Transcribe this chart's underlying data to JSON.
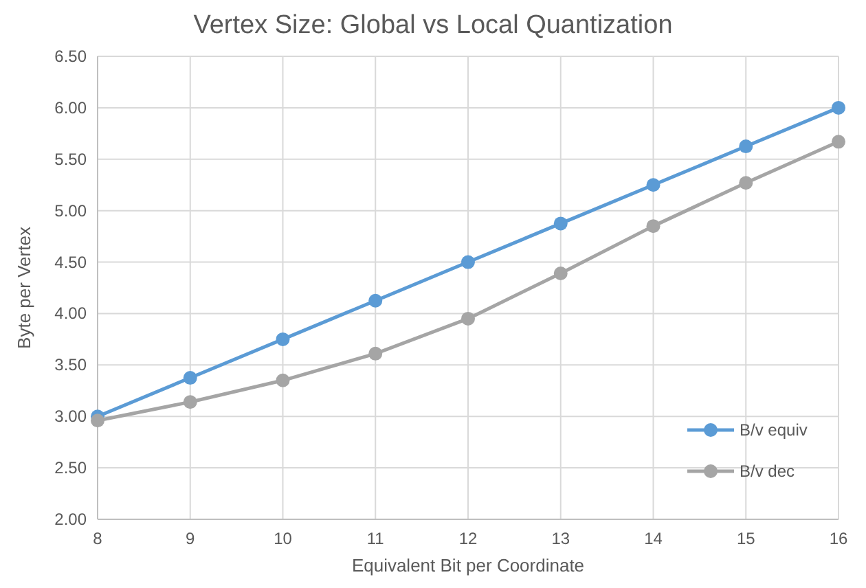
{
  "chart_data": {
    "type": "line",
    "title": "Vertex Size: Global vs Local Quantization",
    "xlabel": "Equivalent Bit per Coordinate",
    "ylabel": "Byte per Vertex",
    "x": [
      8,
      9,
      10,
      11,
      12,
      13,
      14,
      15,
      16
    ],
    "series": [
      {
        "name": "B/v equiv",
        "color": "#5b9bd5",
        "values": [
          3.0,
          3.375,
          3.75,
          4.125,
          4.5,
          4.875,
          5.25,
          5.625,
          6.0
        ]
      },
      {
        "name": "B/v dec",
        "color": "#a5a5a5",
        "values": [
          2.96,
          3.14,
          3.35,
          3.61,
          3.95,
          4.39,
          4.85,
          5.27,
          5.67
        ]
      }
    ],
    "xlim": [
      8,
      16
    ],
    "xticks": [
      8,
      9,
      10,
      11,
      12,
      13,
      14,
      15,
      16
    ],
    "ylim": [
      2,
      6.5
    ],
    "yticks": [
      {
        "value": 2,
        "label": "2.00"
      },
      {
        "value": 2.5,
        "label": "2.50"
      },
      {
        "value": 3,
        "label": "3.00"
      },
      {
        "value": 3.5,
        "label": "3.50"
      },
      {
        "value": 4,
        "label": "4.00"
      },
      {
        "value": 4.5,
        "label": "4.50"
      },
      {
        "value": 5,
        "label": "5.00"
      },
      {
        "value": 5.5,
        "label": "5.50"
      },
      {
        "value": 6,
        "label": "6.00"
      },
      {
        "value": 6.5,
        "label": "6.50"
      }
    ],
    "grid": true,
    "legend": "bottom right",
    "marker": "circle",
    "line_style": "solid"
  }
}
